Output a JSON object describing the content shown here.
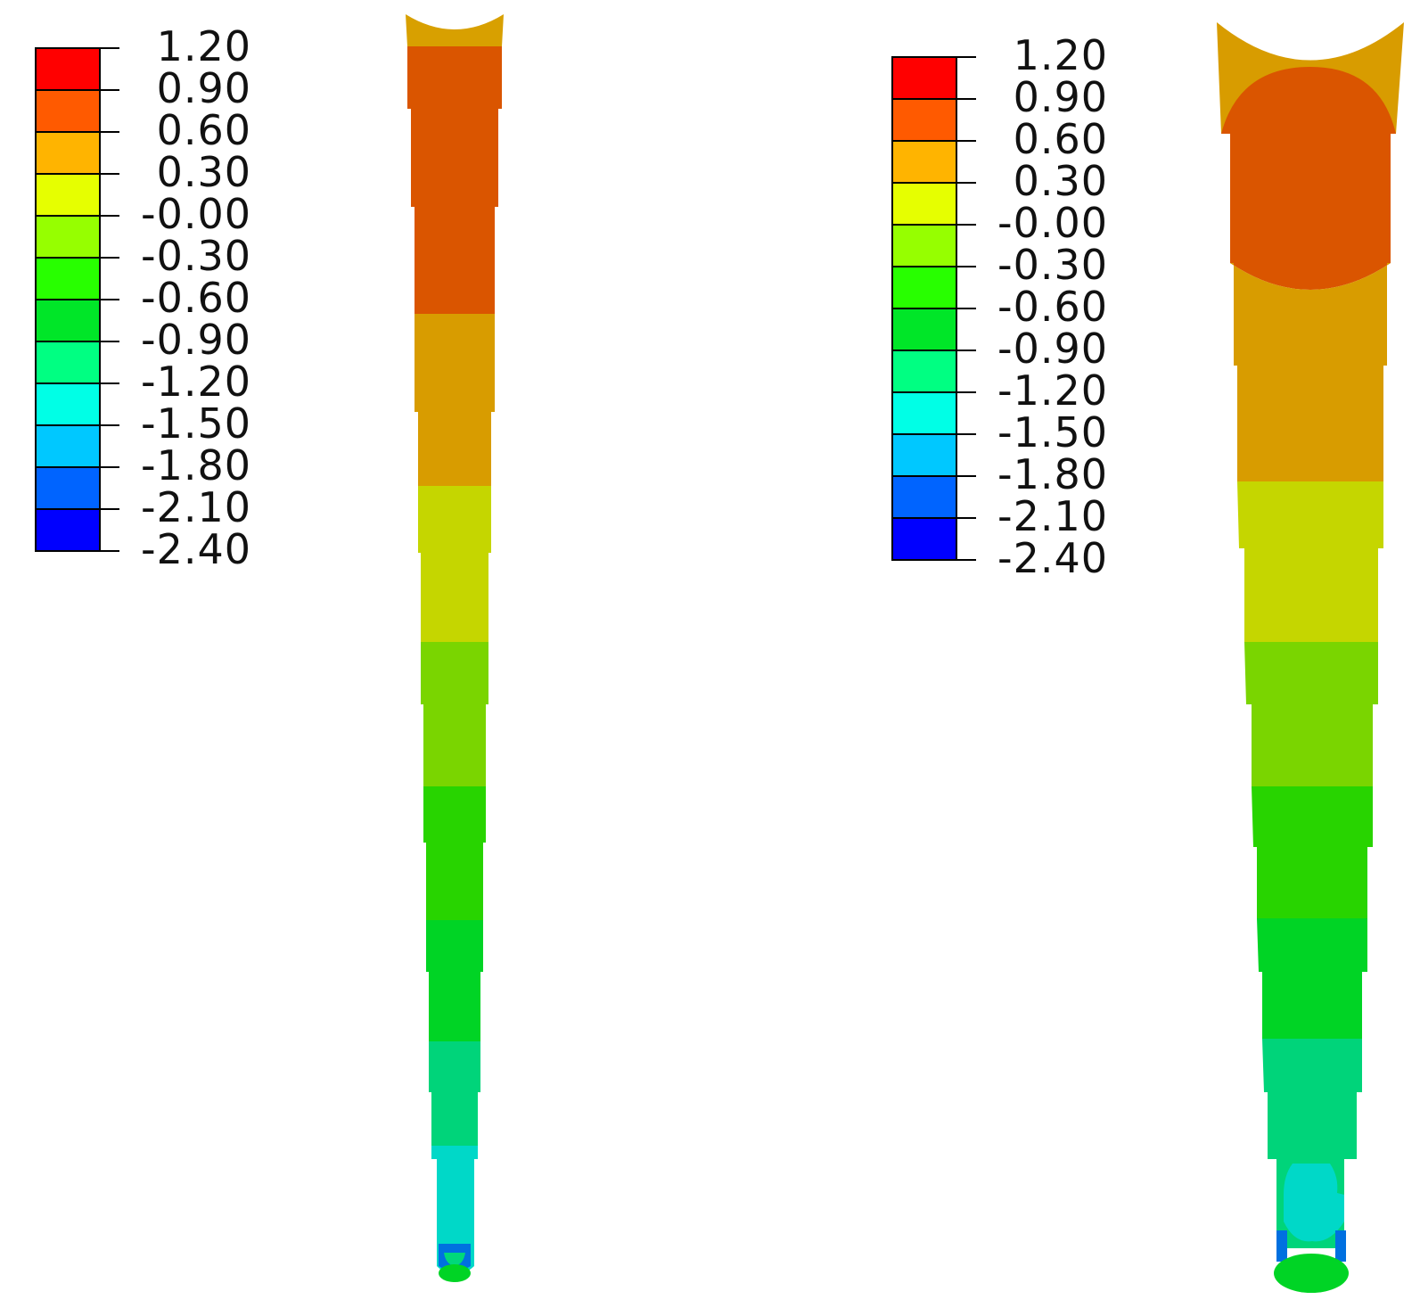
{
  "legend_colors": [
    "#ff0000",
    "#ff5a00",
    "#ffb400",
    "#e6ff00",
    "#96ff00",
    "#28ff00",
    "#00e628",
    "#00ff82",
    "#00ffe6",
    "#00c8ff",
    "#0064ff",
    "#0000ff"
  ],
  "panels": [
    {
      "legend_labels": [
        "1.20",
        "0.90",
        "0.60",
        "0.30",
        "-0.00",
        "-0.30",
        "-0.60",
        "-0.90",
        "-1.20",
        "-1.50",
        "-1.80",
        "-2.10",
        "-2.40"
      ]
    },
    {
      "legend_labels": [
        "1.20",
        "0.90",
        "0.60",
        "0.30",
        "-0.00",
        "-0.30",
        "-0.60",
        "-0.90",
        "-1.20",
        "-1.50",
        "-1.80",
        "-2.10",
        "-2.40"
      ]
    }
  ]
}
